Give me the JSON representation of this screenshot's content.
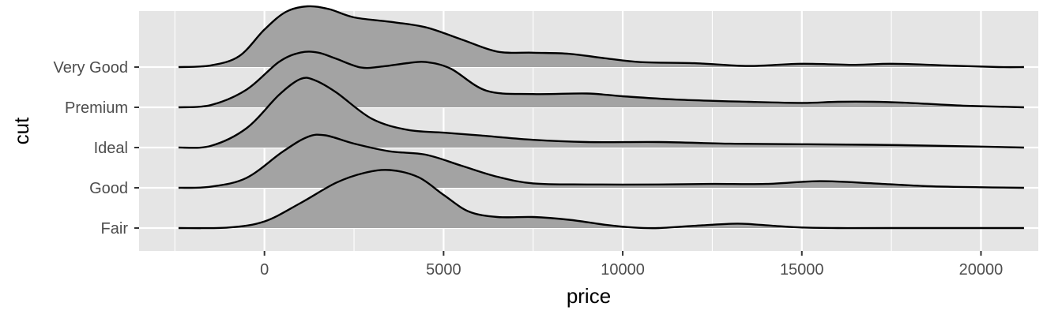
{
  "chart_data": {
    "type": "ridgeline",
    "xlabel": "price",
    "ylabel": "cut",
    "xlim": [
      -3500,
      21600
    ],
    "x_ticks": [
      0,
      5000,
      10000,
      15000,
      20000
    ],
    "x_tick_labels": [
      "0",
      "5000",
      "10000",
      "15000",
      "20000"
    ],
    "categories": [
      "Fair",
      "Good",
      "Ideal",
      "Premium",
      "Very Good"
    ],
    "grid": true,
    "colors": {
      "panel": "#e5e5e5",
      "grid": "#ffffff",
      "fill": "#a3a3a3",
      "line": "#000000"
    },
    "series": [
      {
        "name": "Fair",
        "points": [
          [
            -2400,
            0
          ],
          [
            -1000,
            0.01
          ],
          [
            0,
            0.12
          ],
          [
            1000,
            0.45
          ],
          [
            2000,
            0.82
          ],
          [
            2800,
            1.0
          ],
          [
            3500,
            1.05
          ],
          [
            4300,
            0.92
          ],
          [
            5000,
            0.6
          ],
          [
            5700,
            0.3
          ],
          [
            6500,
            0.2
          ],
          [
            7500,
            0.2
          ],
          [
            8500,
            0.15
          ],
          [
            9500,
            0.06
          ],
          [
            10300,
            0.01
          ],
          [
            11000,
            0.0
          ],
          [
            12000,
            0.04
          ],
          [
            13200,
            0.08
          ],
          [
            14200,
            0.04
          ],
          [
            15000,
            0.01
          ],
          [
            16000,
            0.0
          ],
          [
            17500,
            0.0
          ],
          [
            21200,
            0.0
          ]
        ]
      },
      {
        "name": "Good",
        "points": [
          [
            -2400,
            0
          ],
          [
            -1500,
            0.02
          ],
          [
            -500,
            0.18
          ],
          [
            500,
            0.65
          ],
          [
            1200,
            0.92
          ],
          [
            1700,
            0.95
          ],
          [
            2500,
            0.8
          ],
          [
            3500,
            0.66
          ],
          [
            4500,
            0.6
          ],
          [
            5500,
            0.4
          ],
          [
            6500,
            0.2
          ],
          [
            7500,
            0.08
          ],
          [
            9000,
            0.06
          ],
          [
            11000,
            0.06
          ],
          [
            12500,
            0.07
          ],
          [
            14000,
            0.07
          ],
          [
            15500,
            0.12
          ],
          [
            17000,
            0.08
          ],
          [
            18500,
            0.03
          ],
          [
            20000,
            0.01
          ],
          [
            21200,
            0.0
          ]
        ]
      },
      {
        "name": "Ideal",
        "points": [
          [
            -2400,
            0
          ],
          [
            -1500,
            0.03
          ],
          [
            -500,
            0.35
          ],
          [
            400,
            0.95
          ],
          [
            1000,
            1.24
          ],
          [
            1400,
            1.22
          ],
          [
            2000,
            1.0
          ],
          [
            3000,
            0.52
          ],
          [
            4000,
            0.32
          ],
          [
            5000,
            0.27
          ],
          [
            6000,
            0.22
          ],
          [
            7500,
            0.14
          ],
          [
            9000,
            0.1
          ],
          [
            11000,
            0.1
          ],
          [
            13000,
            0.07
          ],
          [
            15000,
            0.06
          ],
          [
            17000,
            0.05
          ],
          [
            19000,
            0.03
          ],
          [
            21200,
            0.0
          ]
        ]
      },
      {
        "name": "Premium",
        "points": [
          [
            -2400,
            0
          ],
          [
            -1500,
            0.04
          ],
          [
            -500,
            0.32
          ],
          [
            400,
            0.82
          ],
          [
            1000,
            0.99
          ],
          [
            1500,
            0.99
          ],
          [
            2000,
            0.88
          ],
          [
            2700,
            0.72
          ],
          [
            3300,
            0.74
          ],
          [
            4000,
            0.8
          ],
          [
            4500,
            0.82
          ],
          [
            5200,
            0.7
          ],
          [
            6200,
            0.3
          ],
          [
            7500,
            0.24
          ],
          [
            9000,
            0.25
          ],
          [
            10000,
            0.2
          ],
          [
            11500,
            0.14
          ],
          [
            13500,
            0.1
          ],
          [
            15000,
            0.08
          ],
          [
            16000,
            0.1
          ],
          [
            17000,
            0.1
          ],
          [
            18000,
            0.08
          ],
          [
            19500,
            0.03
          ],
          [
            21200,
            0.0
          ]
        ]
      },
      {
        "name": "Very Good",
        "points": [
          [
            -2400,
            0
          ],
          [
            -1500,
            0.03
          ],
          [
            -700,
            0.2
          ],
          [
            0,
            0.68
          ],
          [
            600,
            1.0
          ],
          [
            1200,
            1.1
          ],
          [
            1800,
            1.05
          ],
          [
            2500,
            0.9
          ],
          [
            3500,
            0.82
          ],
          [
            4500,
            0.72
          ],
          [
            5500,
            0.5
          ],
          [
            6500,
            0.28
          ],
          [
            7500,
            0.26
          ],
          [
            8500,
            0.24
          ],
          [
            9500,
            0.16
          ],
          [
            10500,
            0.09
          ],
          [
            12000,
            0.07
          ],
          [
            13500,
            0.02
          ],
          [
            15000,
            0.06
          ],
          [
            16500,
            0.04
          ],
          [
            17500,
            0.06
          ],
          [
            19000,
            0.03
          ],
          [
            20500,
            0.0
          ],
          [
            21200,
            0.0
          ]
        ]
      }
    ]
  }
}
